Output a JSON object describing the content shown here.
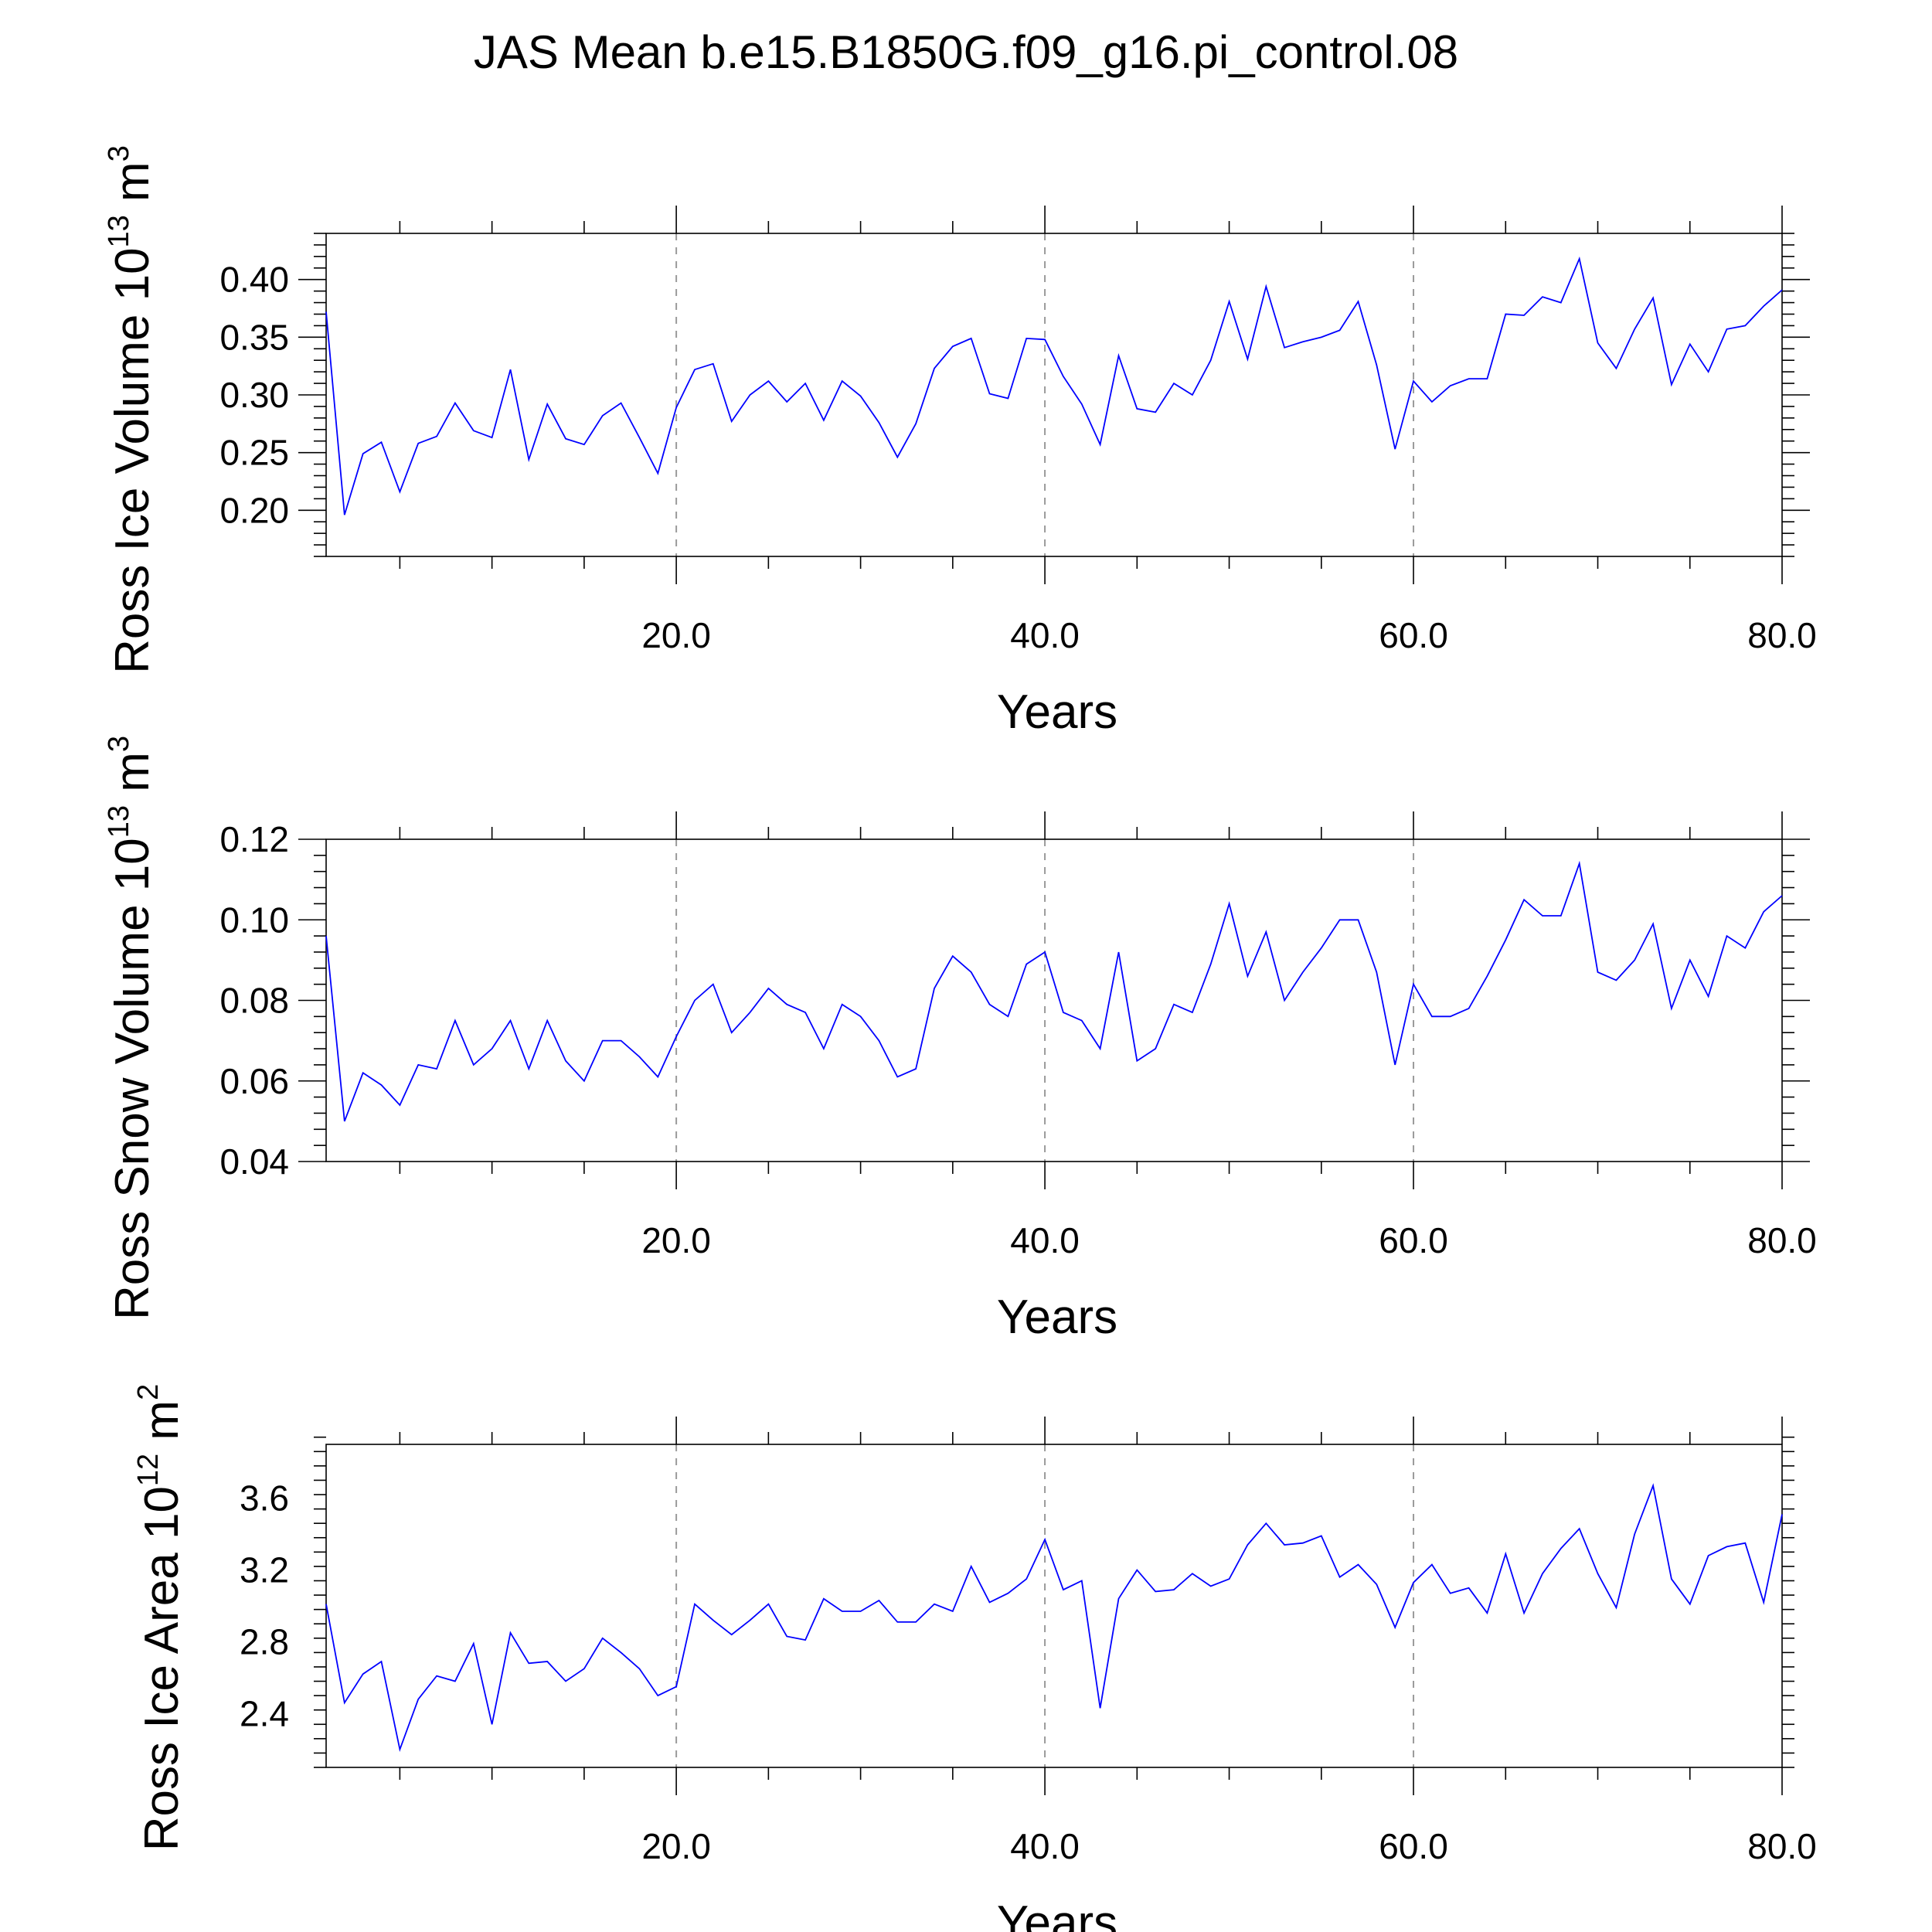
{
  "title": "JAS Mean b.e15.B1850G.f09_g16.pi_control.08",
  "chart_data": [
    {
      "type": "line",
      "ylabel": "Ross Ice Volume 10",
      "ylabel_exp": "13",
      "ylabel_unit": " m",
      "ylabel_unit_exp": "3",
      "xlabel": "Years",
      "xlim": [
        1,
        80
      ],
      "ylim": [
        0.16,
        0.44
      ],
      "xticks": [
        20,
        40,
        60,
        80
      ],
      "xtick_labels": [
        "20.0",
        "40.0",
        "60.0",
        "80.0"
      ],
      "yticks": [
        0.2,
        0.25,
        0.3,
        0.35,
        0.4
      ],
      "ytick_labels": [
        "0.20",
        "0.25",
        "0.30",
        "0.35",
        "0.40"
      ],
      "grid": "vertical dashed at major x ticks",
      "series": [
        {
          "color": "#0000ff",
          "x": [
            1,
            2,
            3,
            4,
            5,
            6,
            7,
            8,
            9,
            10,
            11,
            12,
            13,
            14,
            15,
            16,
            17,
            18,
            19,
            20,
            21,
            22,
            23,
            24,
            25,
            26,
            27,
            28,
            29,
            30,
            31,
            32,
            33,
            34,
            35,
            36,
            37,
            38,
            39,
            40,
            41,
            42,
            43,
            44,
            45,
            46,
            47,
            48,
            49,
            50,
            51,
            52,
            53,
            54,
            55,
            56,
            57,
            58,
            59,
            60,
            61,
            62,
            63,
            64,
            65,
            66,
            67,
            68,
            69,
            70,
            71,
            72,
            73,
            74,
            75,
            76,
            77,
            78,
            79,
            80
          ],
          "values": [
            0.372,
            0.196,
            0.249,
            0.259,
            0.216,
            0.258,
            0.264,
            0.293,
            0.269,
            0.263,
            0.322,
            0.244,
            0.292,
            0.262,
            0.257,
            0.282,
            0.293,
            0.263,
            0.232,
            0.289,
            0.322,
            0.327,
            0.277,
            0.3,
            0.312,
            0.294,
            0.31,
            0.278,
            0.312,
            0.299,
            0.276,
            0.246,
            0.275,
            0.323,
            0.342,
            0.349,
            0.301,
            0.297,
            0.349,
            0.348,
            0.316,
            0.292,
            0.257,
            0.334,
            0.288,
            0.285,
            0.31,
            0.3,
            0.33,
            0.381,
            0.331,
            0.394,
            0.341,
            0.346,
            0.35,
            0.356,
            0.381,
            0.326,
            0.253,
            0.312,
            0.294,
            0.308,
            0.314,
            0.314,
            0.37,
            0.369,
            0.385,
            0.38,
            0.418,
            0.345,
            0.323,
            0.357,
            0.384,
            0.309,
            0.344,
            0.32,
            0.357,
            0.36,
            0.377,
            0.391
          ]
        }
      ]
    },
    {
      "type": "line",
      "ylabel": "Ross Snow Volume 10",
      "ylabel_exp": "13",
      "ylabel_unit": " m",
      "ylabel_unit_exp": "3",
      "xlabel": "Years",
      "xlim": [
        1,
        80
      ],
      "ylim": [
        0.04,
        0.12
      ],
      "xticks": [
        20,
        40,
        60,
        80
      ],
      "xtick_labels": [
        "20.0",
        "40.0",
        "60.0",
        "80.0"
      ],
      "yticks": [
        0.04,
        0.06,
        0.08,
        0.1,
        0.12
      ],
      "ytick_labels": [
        "0.04",
        "0.06",
        "0.08",
        "0.10",
        "0.12"
      ],
      "grid": "vertical dashed at major x ticks",
      "series": [
        {
          "color": "#0000ff",
          "x": [
            1,
            2,
            3,
            4,
            5,
            6,
            7,
            8,
            9,
            10,
            11,
            12,
            13,
            14,
            15,
            16,
            17,
            18,
            19,
            20,
            21,
            22,
            23,
            24,
            25,
            26,
            27,
            28,
            29,
            30,
            31,
            32,
            33,
            34,
            35,
            36,
            37,
            38,
            39,
            40,
            41,
            42,
            43,
            44,
            45,
            46,
            47,
            48,
            49,
            50,
            51,
            52,
            53,
            54,
            55,
            56,
            57,
            58,
            59,
            60,
            61,
            62,
            63,
            64,
            65,
            66,
            67,
            68,
            69,
            70,
            71,
            72,
            73,
            74,
            75,
            76,
            77,
            78,
            79,
            80
          ],
          "values": [
            0.096,
            0.05,
            0.062,
            0.059,
            0.054,
            0.064,
            0.063,
            0.075,
            0.064,
            0.068,
            0.075,
            0.063,
            0.075,
            0.065,
            0.06,
            0.07,
            0.07,
            0.066,
            0.061,
            0.071,
            0.08,
            0.084,
            0.072,
            0.077,
            0.083,
            0.079,
            0.077,
            0.068,
            0.079,
            0.076,
            0.07,
            0.061,
            0.063,
            0.083,
            0.091,
            0.087,
            0.079,
            0.076,
            0.089,
            0.092,
            0.077,
            0.075,
            0.068,
            0.092,
            0.065,
            0.068,
            0.079,
            0.077,
            0.089,
            0.104,
            0.086,
            0.097,
            0.08,
            0.087,
            0.093,
            0.1,
            0.1,
            0.087,
            0.064,
            0.084,
            0.076,
            0.076,
            0.078,
            0.086,
            0.095,
            0.105,
            0.101,
            0.101,
            0.114,
            0.087,
            0.085,
            0.09,
            0.099,
            0.078,
            0.09,
            0.081,
            0.096,
            0.093,
            0.102,
            0.106
          ]
        }
      ]
    },
    {
      "type": "line",
      "ylabel": "Ross Ice Area 10",
      "ylabel_exp": "12",
      "ylabel_unit": " m",
      "ylabel_unit_exp": "2",
      "xlabel": "Years",
      "xlim": [
        1,
        80
      ],
      "ylim": [
        2.1,
        3.9
      ],
      "xticks": [
        20,
        40,
        60,
        80
      ],
      "xtick_labels": [
        "20.0",
        "40.0",
        "60.0",
        "80.0"
      ],
      "yticks": [
        2.4,
        2.8,
        3.2,
        3.6
      ],
      "ytick_labels": [
        "2.4",
        "2.8",
        "3.2",
        "3.6"
      ],
      "grid": "vertical dashed at major x ticks",
      "series": [
        {
          "color": "#0000ff",
          "x": [
            1,
            2,
            3,
            4,
            5,
            6,
            7,
            8,
            9,
            10,
            11,
            12,
            13,
            14,
            15,
            16,
            17,
            18,
            19,
            20,
            21,
            22,
            23,
            24,
            25,
            26,
            27,
            28,
            29,
            30,
            31,
            32,
            33,
            34,
            35,
            36,
            37,
            38,
            39,
            40,
            41,
            42,
            43,
            44,
            45,
            46,
            47,
            48,
            49,
            50,
            51,
            52,
            53,
            54,
            55,
            56,
            57,
            58,
            59,
            60,
            61,
            62,
            63,
            64,
            65,
            66,
            67,
            68,
            69,
            70,
            71,
            72,
            73,
            74,
            75,
            76,
            77,
            78,
            79,
            80
          ],
          "values": [
            3.01,
            2.46,
            2.62,
            2.69,
            2.2,
            2.48,
            2.61,
            2.58,
            2.79,
            2.34,
            2.85,
            2.68,
            2.69,
            2.58,
            2.65,
            2.82,
            2.74,
            2.65,
            2.5,
            2.55,
            3.01,
            2.92,
            2.84,
            2.92,
            3.01,
            2.83,
            2.81,
            3.04,
            2.97,
            2.97,
            3.03,
            2.91,
            2.91,
            3.01,
            2.97,
            3.22,
            3.02,
            3.07,
            3.15,
            3.37,
            3.09,
            3.14,
            2.43,
            3.04,
            3.2,
            3.08,
            3.09,
            3.18,
            3.11,
            3.15,
            3.34,
            3.46,
            3.34,
            3.35,
            3.39,
            3.16,
            3.23,
            3.12,
            2.88,
            3.13,
            3.23,
            3.07,
            3.1,
            2.96,
            3.29,
            2.96,
            3.18,
            3.32,
            3.43,
            3.18,
            2.99,
            3.4,
            3.67,
            3.15,
            3.01,
            3.28,
            3.33,
            3.35,
            3.02,
            3.51
          ]
        }
      ]
    }
  ]
}
